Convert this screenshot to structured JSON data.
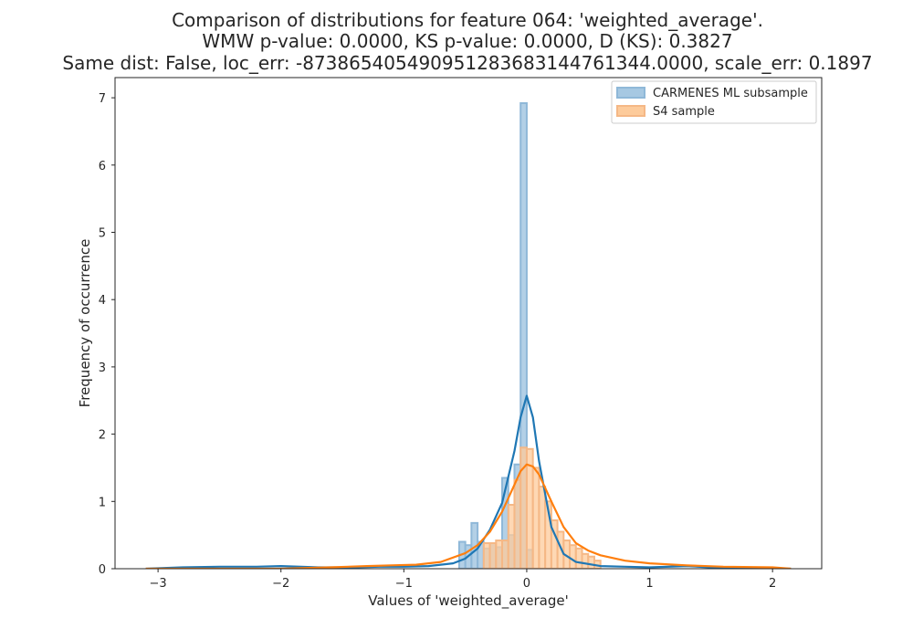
{
  "chart_data": {
    "type": "area",
    "title_lines": [
      "Comparison of distributions for feature 064: 'weighted_average'.",
      "WMW p-value: 0.0000, KS p-value: 0.0000, D (KS): 0.3827",
      "Same dist: False, loc_err: -873865405490951283683144761344.0000, scale_err: 0.1897"
    ],
    "xlabel": "Values of 'weighted_average'",
    "ylabel": "Frequency of occurrence",
    "xlim": [
      -3.35,
      2.4
    ],
    "ylim": [
      0,
      7.3
    ],
    "x_ticks": [
      -3,
      -2,
      -1,
      0,
      1,
      2
    ],
    "x_tick_labels": [
      "−3",
      "−2",
      "−1",
      "0",
      "1",
      "2"
    ],
    "y_ticks": [
      0,
      1,
      2,
      3,
      4,
      5,
      6,
      7
    ],
    "y_tick_labels": [
      "0",
      "1",
      "2",
      "3",
      "4",
      "5",
      "6",
      "7"
    ],
    "grid": false,
    "legend_position": "top-right",
    "colors": {
      "carmenes_fill": "#a6c8e2",
      "carmenes_edge": "#8fb8d8",
      "carmenes_kde": "#1f77b4",
      "s4_fill": "#fdcb9b",
      "s4_edge": "#f5b886",
      "s4_kde": "#ff7f0e",
      "overlap_edge": "#a0a0a0",
      "text": "#262626"
    },
    "series": [
      {
        "name": "CARMENES ML subsample",
        "histogram": {
          "bin_edges": [
            -0.55,
            -0.5,
            -0.45,
            -0.4,
            -0.35,
            -0.3,
            -0.25,
            -0.2,
            -0.15,
            -0.1,
            -0.05,
            0.0,
            0.05
          ],
          "heights": [
            0.4,
            0.35,
            0.68,
            0.4,
            0.3,
            0.38,
            0.32,
            1.35,
            0.5,
            1.55,
            6.92,
            0.28
          ]
        },
        "kde": {
          "x": [
            -3.1,
            -2.8,
            -2.5,
            -2.2,
            -2.0,
            -1.7,
            -1.4,
            -1.2,
            -1.0,
            -0.8,
            -0.6,
            -0.5,
            -0.4,
            -0.3,
            -0.2,
            -0.1,
            -0.05,
            0.0,
            0.05,
            0.1,
            0.2,
            0.3,
            0.4,
            0.6,
            0.8,
            1.0,
            1.3,
            1.6,
            2.0,
            2.15
          ],
          "y": [
            0.0,
            0.02,
            0.03,
            0.03,
            0.04,
            0.02,
            0.02,
            0.03,
            0.03,
            0.04,
            0.08,
            0.15,
            0.3,
            0.58,
            0.98,
            1.75,
            2.25,
            2.57,
            2.25,
            1.6,
            0.62,
            0.22,
            0.1,
            0.04,
            0.03,
            0.02,
            0.04,
            0.01,
            0.0,
            0.0
          ]
        }
      },
      {
        "name": "S4 sample",
        "histogram": {
          "bin_edges": [
            -0.35,
            -0.3,
            -0.25,
            -0.2,
            -0.15,
            -0.1,
            -0.05,
            0.0,
            0.05,
            0.1,
            0.15,
            0.2,
            0.25,
            0.3,
            0.35,
            0.4,
            0.45,
            0.5,
            0.55,
            0.6
          ],
          "heights": [
            0.38,
            0.38,
            0.42,
            0.42,
            0.95,
            1.32,
            1.8,
            1.78,
            1.5,
            1.22,
            1.0,
            0.72,
            0.55,
            0.42,
            0.35,
            0.3,
            0.22,
            0.18,
            0.12
          ]
        },
        "kde": {
          "x": [
            -3.1,
            -2.5,
            -2.0,
            -1.6,
            -1.3,
            -1.1,
            -0.9,
            -0.7,
            -0.5,
            -0.4,
            -0.3,
            -0.2,
            -0.1,
            -0.05,
            0.0,
            0.05,
            0.1,
            0.2,
            0.3,
            0.4,
            0.5,
            0.6,
            0.8,
            1.0,
            1.3,
            1.6,
            2.0,
            2.15
          ],
          "y": [
            0.0,
            0.0,
            0.0,
            0.02,
            0.04,
            0.05,
            0.06,
            0.1,
            0.23,
            0.35,
            0.55,
            0.85,
            1.25,
            1.45,
            1.55,
            1.52,
            1.4,
            1.0,
            0.62,
            0.38,
            0.27,
            0.2,
            0.12,
            0.08,
            0.05,
            0.03,
            0.02,
            0.0
          ]
        }
      }
    ]
  }
}
